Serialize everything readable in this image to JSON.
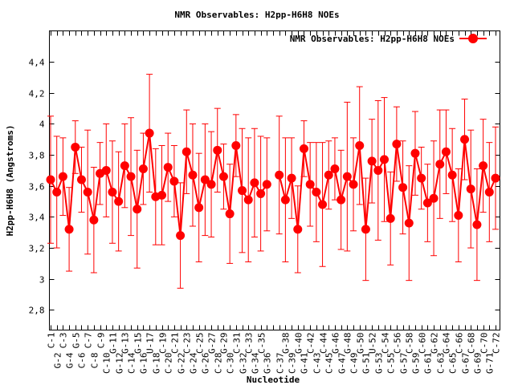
{
  "chart_data": {
    "type": "line",
    "title": "NMR Observables: H2pp-H6H8 NOEs",
    "xlabel": "Nucleotide",
    "ylabel": "H2pp-H6H8 (Angstroms)",
    "ylim": [
      2.67,
      4.6
    ],
    "yticks": [
      "2,8",
      "3",
      "3,2",
      "3,4",
      "3,6",
      "3,8",
      "4",
      "4,2",
      "4,4"
    ],
    "ytick_values": [
      2.8,
      3.0,
      3.2,
      3.4,
      3.6,
      3.8,
      4.0,
      4.2,
      4.4
    ],
    "grid": false,
    "legend": {
      "position": "top-right",
      "entries": [
        "NMR Observables: H2pp-H6H8 NOEs"
      ]
    },
    "color": "#ff0000",
    "categories": [
      "C-1",
      "G-2",
      "C-3",
      "G-4",
      "G-5",
      "C-6",
      "C-7",
      "C-8",
      "C-9",
      "C-10",
      "G-11",
      "G-12",
      "G-13",
      "C-14",
      "G-15",
      "G-16",
      "U-17",
      "G-18",
      "C-19",
      "C-20",
      "C-21",
      "G-22",
      "C-23",
      "G-24",
      "C-25",
      "G-26",
      "G-27",
      "C-28",
      "G-29",
      "C-30",
      "C-31",
      "G-32",
      "C-33",
      "G-34",
      "C-35",
      "G-36",
      "",
      "C-37",
      "G-38",
      "C-39",
      "G-40",
      "G-41",
      "C-42",
      "C-43",
      "C-44",
      "C-45",
      "G-46",
      "G-47",
      "G-48",
      "C-49",
      "G-50",
      "G-51",
      "U-52",
      "G-53",
      "C-54",
      "C-55",
      "C-56",
      "G-57",
      "C-58",
      "G-59",
      "C-60",
      "G-61",
      "G-62",
      "C-63",
      "G-64",
      "C-65",
      "C-66",
      "G-67",
      "C-68",
      "G-69",
      "C-70",
      "G-71",
      "C-72"
    ],
    "series": [
      {
        "name": "NMR Observables: H2pp-H6H8 NOEs",
        "values": [
          3.64,
          3.56,
          3.66,
          3.32,
          3.85,
          3.64,
          3.56,
          3.38,
          3.68,
          3.7,
          3.56,
          3.5,
          3.73,
          3.66,
          3.45,
          3.71,
          3.94,
          3.53,
          3.54,
          3.72,
          3.63,
          3.28,
          3.82,
          3.67,
          3.46,
          3.64,
          3.61,
          3.83,
          3.66,
          3.42,
          3.86,
          3.57,
          3.51,
          3.62,
          3.55,
          3.61,
          null,
          3.67,
          3.51,
          3.65,
          3.32,
          3.84,
          3.61,
          3.56,
          3.48,
          3.67,
          3.71,
          3.51,
          3.66,
          3.61,
          3.86,
          3.32,
          3.76,
          3.7,
          3.77,
          3.39,
          3.87,
          3.59,
          3.36,
          3.81,
          3.65,
          3.49,
          3.52,
          3.74,
          3.82,
          3.67,
          3.41,
          3.9,
          3.58,
          3.35,
          3.73,
          3.56,
          3.65
        ],
        "errors": [
          0.41,
          0.36,
          0.25,
          0.27,
          0.17,
          0.21,
          0.4,
          0.34,
          0.2,
          0.3,
          0.33,
          0.32,
          0.27,
          0.38,
          0.38,
          0.23,
          0.38,
          0.31,
          0.32,
          0.22,
          0.23,
          0.34,
          0.27,
          0.33,
          0.35,
          0.36,
          0.34,
          0.27,
          0.21,
          0.32,
          0.2,
          0.4,
          0.4,
          0.35,
          0.37,
          0.3,
          null,
          0.38,
          0.4,
          0.26,
          0.28,
          0.18,
          0.27,
          0.32,
          0.4,
          0.22,
          0.2,
          0.32,
          0.48,
          0.3,
          0.38,
          0.33,
          0.27,
          0.45,
          0.4,
          0.3,
          0.24,
          0.3,
          0.37,
          0.27,
          0.2,
          0.25,
          0.37,
          0.35,
          0.27,
          0.3,
          0.3,
          0.26,
          0.38,
          0.36,
          0.3,
          0.32,
          0.33
        ]
      }
    ]
  }
}
